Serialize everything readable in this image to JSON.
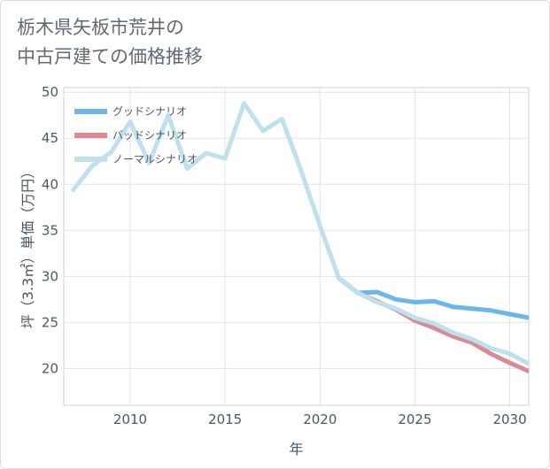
{
  "title": "栃木県矢板市荒井の\n中古戸建ての価格推移",
  "chart_data": {
    "type": "line",
    "xlabel": "年",
    "ylabel": "坪（3.3㎡）単価（万円）",
    "xlim": [
      2006.5,
      2031
    ],
    "ylim": [
      16,
      50.5
    ],
    "xticks": [
      2010,
      2015,
      2020,
      2025,
      2030
    ],
    "yticks": [
      20,
      25,
      30,
      35,
      40,
      45,
      50
    ],
    "grid": true,
    "legend_position": "top-left",
    "series": [
      {
        "name": "グッドシナリオ",
        "color": "#6cb6ec",
        "x": [
          2021,
          2022,
          2023,
          2024,
          2025,
          2026,
          2027,
          2028,
          2029,
          2030,
          2031
        ],
        "y": [
          29.8,
          28.2,
          28.3,
          27.5,
          27.2,
          27.3,
          26.7,
          26.5,
          26.3,
          25.9,
          25.5
        ]
      },
      {
        "name": "バッドシナリオ",
        "color": "#d98a95",
        "x": [
          2021,
          2022,
          2023,
          2024,
          2025,
          2026,
          2027,
          2028,
          2029,
          2030,
          2031
        ],
        "y": [
          29.8,
          28.2,
          27.3,
          26.4,
          25.2,
          24.4,
          23.5,
          22.8,
          21.6,
          20.6,
          19.7
        ]
      },
      {
        "name": "ノーマルシナリオ",
        "color": "#bfe0ec",
        "x": [
          2007,
          2008,
          2009,
          2010,
          2011,
          2012,
          2013,
          2014,
          2015,
          2016,
          2017,
          2018,
          2019,
          2020,
          2021,
          2022,
          2023,
          2024,
          2025,
          2026,
          2027,
          2028,
          2029,
          2030,
          2031
        ],
        "y": [
          39.4,
          42.0,
          43.5,
          46.8,
          42.3,
          47.5,
          41.7,
          43.4,
          42.8,
          48.8,
          45.8,
          47.1,
          41.5,
          35.5,
          29.8,
          28.2,
          27.2,
          26.5,
          25.5,
          24.9,
          23.9,
          23.2,
          22.2,
          21.6,
          20.5
        ]
      }
    ]
  }
}
